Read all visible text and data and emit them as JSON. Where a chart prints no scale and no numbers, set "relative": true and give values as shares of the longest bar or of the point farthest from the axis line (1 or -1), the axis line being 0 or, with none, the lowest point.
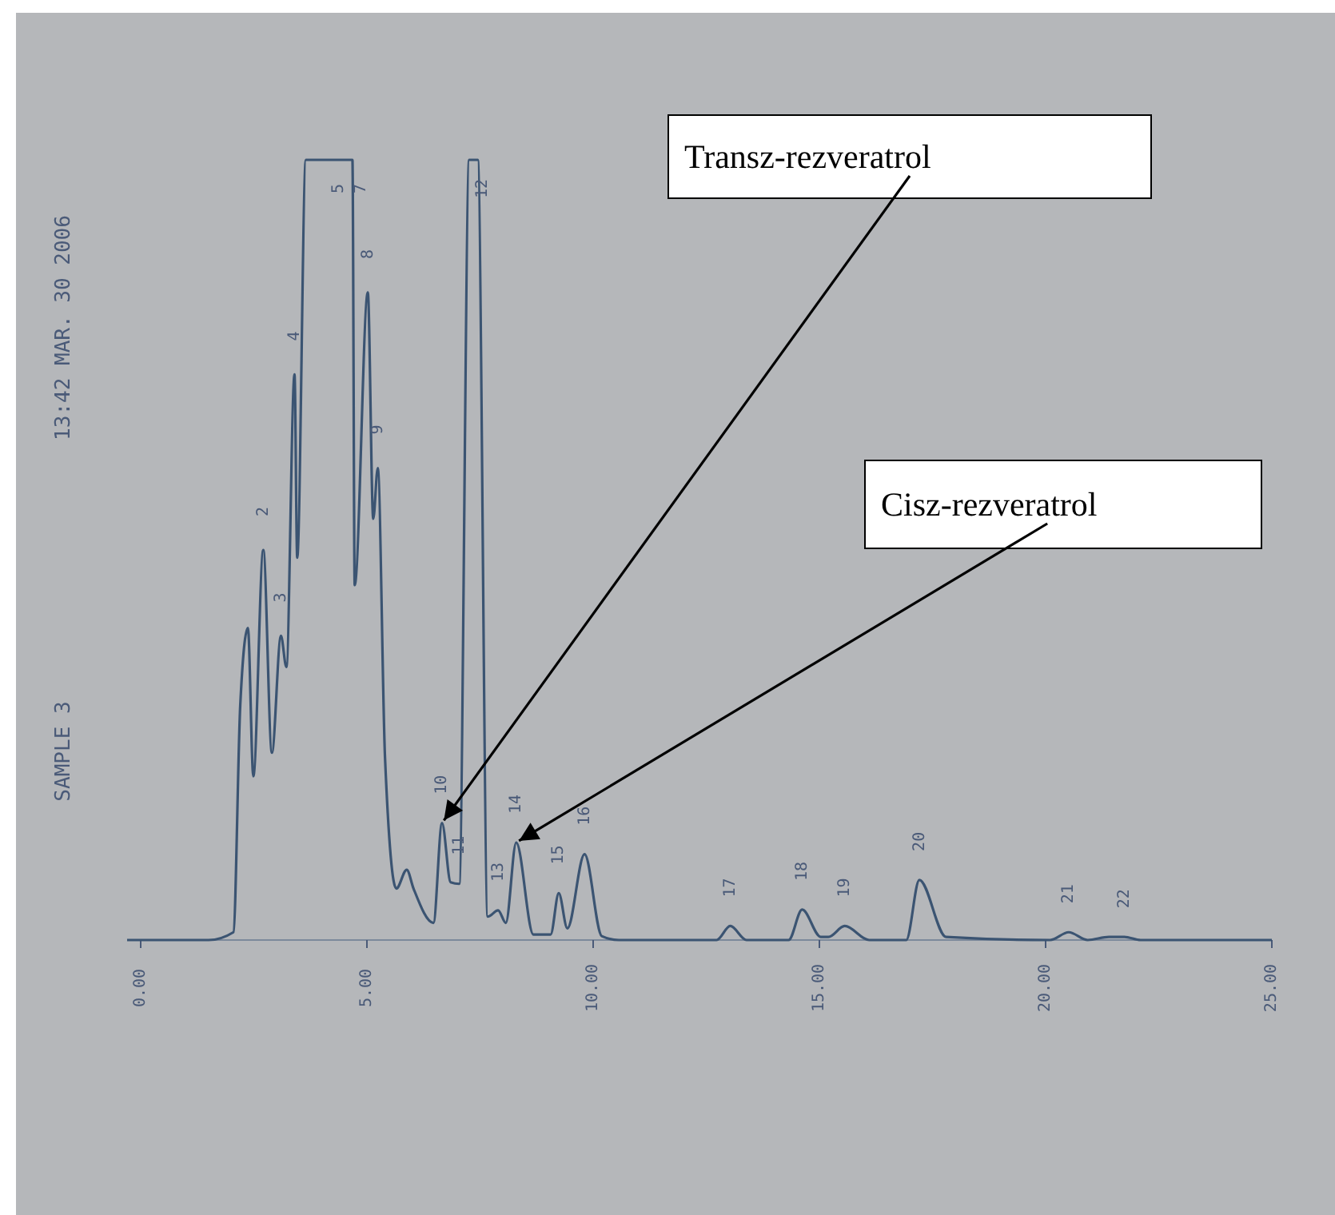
{
  "chart_data": {
    "type": "line",
    "relative": true,
    "xlim": [
      -0.3,
      25
    ],
    "xticks": [
      {
        "value": 0,
        "label": "0.00"
      },
      {
        "value": 5,
        "label": "5.00"
      },
      {
        "value": 10,
        "label": "10.00"
      },
      {
        "value": 15,
        "label": "15.00"
      },
      {
        "value": 20,
        "label": "20.00"
      },
      {
        "value": 25,
        "label": "25.00"
      }
    ],
    "grid": false,
    "series": [
      {
        "color": "#3b5472",
        "x": [
          -0.3,
          1.5,
          2.05,
          2.2,
          2.37,
          2.49,
          2.71,
          2.9,
          3.1,
          3.22,
          3.4,
          3.46,
          3.65,
          4.68,
          4.73,
          5.02,
          5.14,
          5.24,
          5.4,
          5.65,
          5.88,
          6.03,
          6.47,
          6.66,
          6.85,
          7.04,
          7.26,
          7.45,
          7.67,
          7.9,
          8.07,
          8.3,
          8.68,
          9.06,
          9.24,
          9.43,
          9.81,
          10.19,
          10.57,
          12.73,
          13.03,
          13.39,
          14.32,
          14.62,
          15.03,
          15.2,
          15.56,
          16.1,
          16.92,
          17.21,
          17.8,
          20.1,
          20.51,
          20.93,
          21.4,
          21.74,
          22.1,
          25
        ],
        "values": [
          0,
          0,
          0.01,
          0.3,
          0.4,
          0.21,
          0.5,
          0.24,
          0.39,
          0.35,
          0.725,
          0.49,
          1,
          1,
          0.455,
          0.83,
          0.54,
          0.605,
          0.234,
          0.066,
          0.09,
          0.066,
          0.022,
          0.15,
          0.074,
          0.072,
          1,
          1,
          0.03,
          0.038,
          0.022,
          0.125,
          0.007,
          0.007,
          0.06,
          0.015,
          0.11,
          0.005,
          0,
          0,
          0.018,
          0,
          0,
          0.039,
          0.004,
          0.004,
          0.018,
          0,
          0,
          0.077,
          0.004,
          0,
          0.01,
          0,
          0.004,
          0.004,
          0,
          0
        ]
      }
    ],
    "annotations": [
      {
        "text": "Transz-rezveratrol",
        "x": 6.66,
        "y": 0.15
      },
      {
        "text": "Cisz-rezveratrol",
        "x": 8.3,
        "y": 0.125
      },
      "13:42 MAR. 30 2006",
      "SAMPLE 3",
      {
        "text": "2",
        "x": 2.71,
        "y": 0.5
      },
      {
        "text": "3",
        "x": 3.1,
        "y": 0.39
      },
      {
        "text": "4",
        "x": 3.4,
        "y": 0.725
      },
      {
        "text": "5",
        "x": 4.17,
        "y": 1
      },
      {
        "text": "7",
        "x": 4.66,
        "y": 1
      },
      {
        "text": "8",
        "x": 5.02,
        "y": 0.83
      },
      {
        "text": "9",
        "x": 5.24,
        "y": 0.605
      },
      {
        "text": "10",
        "x": 6.66,
        "y": 0.15
      },
      {
        "text": "11",
        "x": 7.04,
        "y": 0.072
      },
      {
        "text": "12",
        "x": 7.35,
        "y": 1
      },
      {
        "text": "13",
        "x": 7.9,
        "y": 0.038
      },
      {
        "text": "14",
        "x": 8.3,
        "y": 0.125
      },
      {
        "text": "15",
        "x": 9.24,
        "y": 0.06
      },
      {
        "text": "16",
        "x": 9.81,
        "y": 0.11
      },
      {
        "text": "17",
        "x": 13.03,
        "y": 0.018
      },
      {
        "text": "18",
        "x": 14.62,
        "y": 0.039
      },
      {
        "text": "19",
        "x": 15.56,
        "y": 0.018
      },
      {
        "text": "20",
        "x": 17.21,
        "y": 0.077
      },
      {
        "text": "21",
        "x": 20.51,
        "y": 0.01
      },
      {
        "text": "22",
        "x": 21.74,
        "y": 0.004
      }
    ]
  }
}
